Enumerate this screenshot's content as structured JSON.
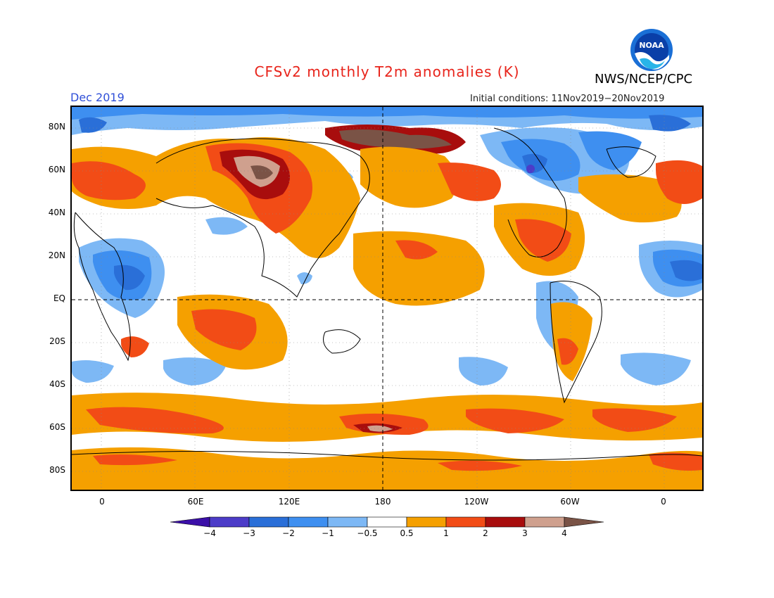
{
  "header": {
    "title": "CFSv2 monthly T2m anomalies (K)",
    "agency": "NWS/NCEP/CPC",
    "logo_text": "NOAA",
    "month": "Dec 2019",
    "initial_conditions": "Initial conditions: 11Nov2019−20Nov2019"
  },
  "axes": {
    "lat_labels": [
      "80N",
      "60N",
      "40N",
      "20N",
      "EQ",
      "20S",
      "40S",
      "60S",
      "80S"
    ],
    "lon_labels": [
      "0",
      "60E",
      "120E",
      "180",
      "120W",
      "60W",
      "0"
    ]
  },
  "legend": {
    "labels": [
      "−4",
      "−3",
      "−2",
      "−1",
      "−0.5",
      "0.5",
      "1",
      "2",
      "3",
      "4"
    ],
    "colors": [
      "#3b0fa8",
      "#4c3cc8",
      "#2a6fd8",
      "#3e8ff0",
      "#7db8f5",
      "#ffffff",
      "#f5a000",
      "#f24c16",
      "#a80d0d",
      "#cfa08e",
      "#7a5346"
    ]
  },
  "colors": {
    "title": "#e8241b",
    "month_label": "#2f4fd8"
  }
}
